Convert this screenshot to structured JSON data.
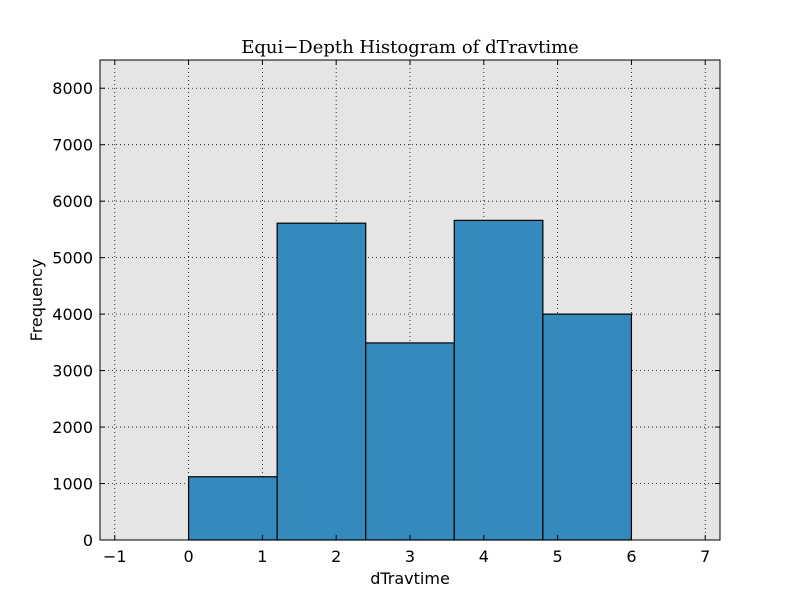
{
  "chart_data": {
    "type": "bar",
    "title": "Equi−Depth Histogram of dTravtime",
    "xlabel": "dTravtime",
    "ylabel": "Frequency",
    "xlim": [
      -1.2,
      7.2
    ],
    "ylim": [
      0,
      8500
    ],
    "xticks": [
      -1,
      0,
      1,
      2,
      3,
      4,
      5,
      6,
      7
    ],
    "yticks": [
      0,
      1000,
      2000,
      3000,
      4000,
      5000,
      6000,
      7000,
      8000
    ],
    "bins": [
      {
        "start": 0.0,
        "end": 1.2,
        "value": 1120
      },
      {
        "start": 1.2,
        "end": 2.4,
        "value": 5610
      },
      {
        "start": 2.4,
        "end": 3.6,
        "value": 3490
      },
      {
        "start": 3.6,
        "end": 4.8,
        "value": 5660
      },
      {
        "start": 4.8,
        "end": 6.0,
        "value": 4000
      }
    ],
    "grid": true,
    "colors": {
      "bar_fill": "#348abd",
      "bar_edge": "#000000",
      "plot_background": "#e5e5e5"
    }
  }
}
